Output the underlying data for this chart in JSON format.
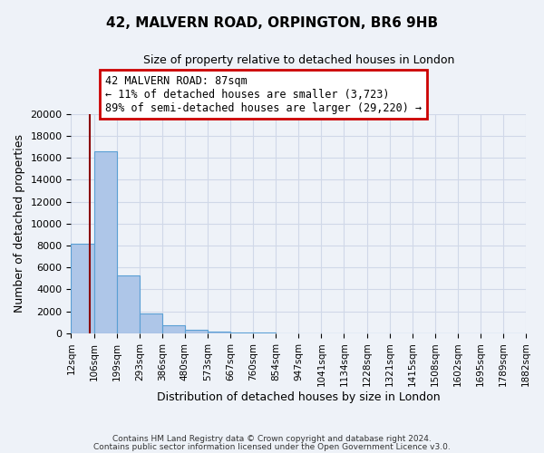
{
  "title": "42, MALVERN ROAD, ORPINGTON, BR6 9HB",
  "subtitle": "Size of property relative to detached houses in London",
  "xlabel": "Distribution of detached houses by size in London",
  "ylabel": "Number of detached properties",
  "bar_labels": [
    "12sqm",
    "106sqm",
    "199sqm",
    "293sqm",
    "386sqm",
    "480sqm",
    "573sqm",
    "667sqm",
    "760sqm",
    "854sqm",
    "947sqm",
    "1041sqm",
    "1134sqm",
    "1228sqm",
    "1321sqm",
    "1415sqm",
    "1508sqm",
    "1602sqm",
    "1695sqm",
    "1789sqm",
    "1882sqm"
  ],
  "bar_values": [
    8200,
    16600,
    5300,
    1800,
    750,
    300,
    150,
    80,
    40,
    0,
    0,
    0,
    0,
    0,
    0,
    0,
    0,
    0,
    0,
    0,
    0
  ],
  "bar_color": "#aec6e8",
  "bar_edge_color": "#5a9fd4",
  "ylim": [
    0,
    20000
  ],
  "yticks": [
    0,
    2000,
    4000,
    6000,
    8000,
    10000,
    12000,
    14000,
    16000,
    18000,
    20000
  ],
  "property_line_x": 87,
  "property_line_color": "#8b0000",
  "annotation_title": "42 MALVERN ROAD: 87sqm",
  "annotation_line1": "← 11% of detached houses are smaller (3,723)",
  "annotation_line2": "89% of semi-detached houses are larger (29,220) →",
  "annotation_box_color": "#ffffff",
  "annotation_box_edge_color": "#cc0000",
  "grid_color": "#d0d8e8",
  "background_color": "#eef2f8",
  "footer1": "Contains HM Land Registry data © Crown copyright and database right 2024.",
  "footer2": "Contains public sector information licensed under the Open Government Licence v3.0.",
  "bin_edges": [
    12,
    106,
    199,
    293,
    386,
    480,
    573,
    667,
    760,
    854,
    947,
    1041,
    1134,
    1228,
    1321,
    1415,
    1508,
    1602,
    1695,
    1789,
    1882
  ]
}
